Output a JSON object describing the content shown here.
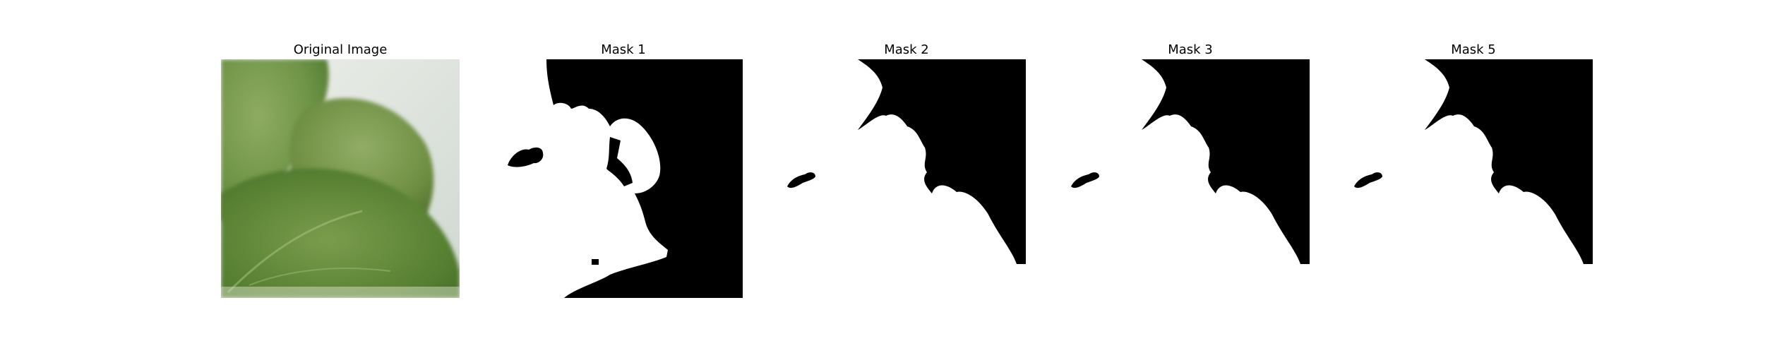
{
  "figure": {
    "panels": [
      {
        "title": "Original Image",
        "kind": "photo",
        "content": "green leaf close-up"
      },
      {
        "title": "Mask 1",
        "kind": "mask"
      },
      {
        "title": "Mask 2",
        "kind": "mask"
      },
      {
        "title": "Mask 3",
        "kind": "mask"
      },
      {
        "title": "Mask 5",
        "kind": "mask"
      }
    ]
  },
  "colors": {
    "mask_foreground": "#ffffff",
    "mask_background": "#000000",
    "leaf_dark": "#4f7a2e",
    "leaf_mid": "#6f9447",
    "leaf_light": "#a9c287",
    "background_light": "#dfe5e1"
  }
}
